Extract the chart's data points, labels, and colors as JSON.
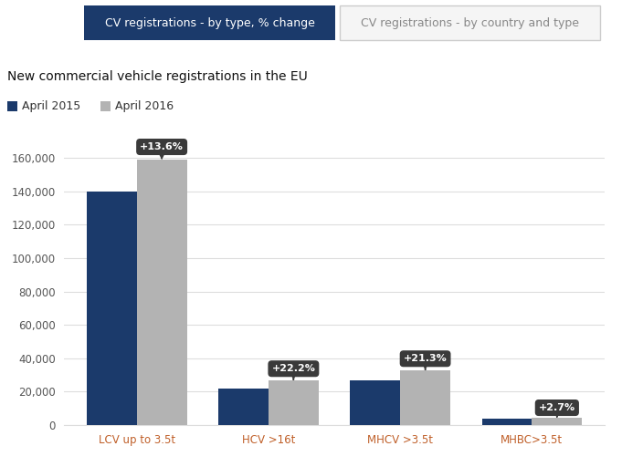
{
  "categories": [
    "LCV up to 3.5t",
    "HCV >16t",
    "MHCV >3.5t",
    "MHBC>3.5t"
  ],
  "values_2015": [
    140000,
    22000,
    27000,
    4000
  ],
  "values_2016": [
    159000,
    27000,
    33000,
    4100
  ],
  "labels": [
    "+13.6%",
    "+22.2%",
    "+21.3%",
    "+2.7%"
  ],
  "color_2015": "#1b3a6b",
  "color_2016": "#b3b3b3",
  "title": "New commercial vehicle registrations in the EU",
  "legend_2015": "April 2015",
  "legend_2016": "April 2016",
  "ylim": [
    0,
    168000
  ],
  "yticks": [
    0,
    20000,
    40000,
    60000,
    80000,
    100000,
    120000,
    140000,
    160000
  ],
  "tab1_label": "CV registrations - by type, % change",
  "tab2_label": "CV registrations - by country and type",
  "tab1_color": "#1b3a6b",
  "tab2_color": "#f5f5f5",
  "annotation_bg": "#3a3a3a",
  "annotation_fg": "#ffffff",
  "background_color": "#ffffff",
  "xticklabel_color": "#c0602a",
  "ytick_color": "#555555",
  "grid_color": "#dddddd"
}
